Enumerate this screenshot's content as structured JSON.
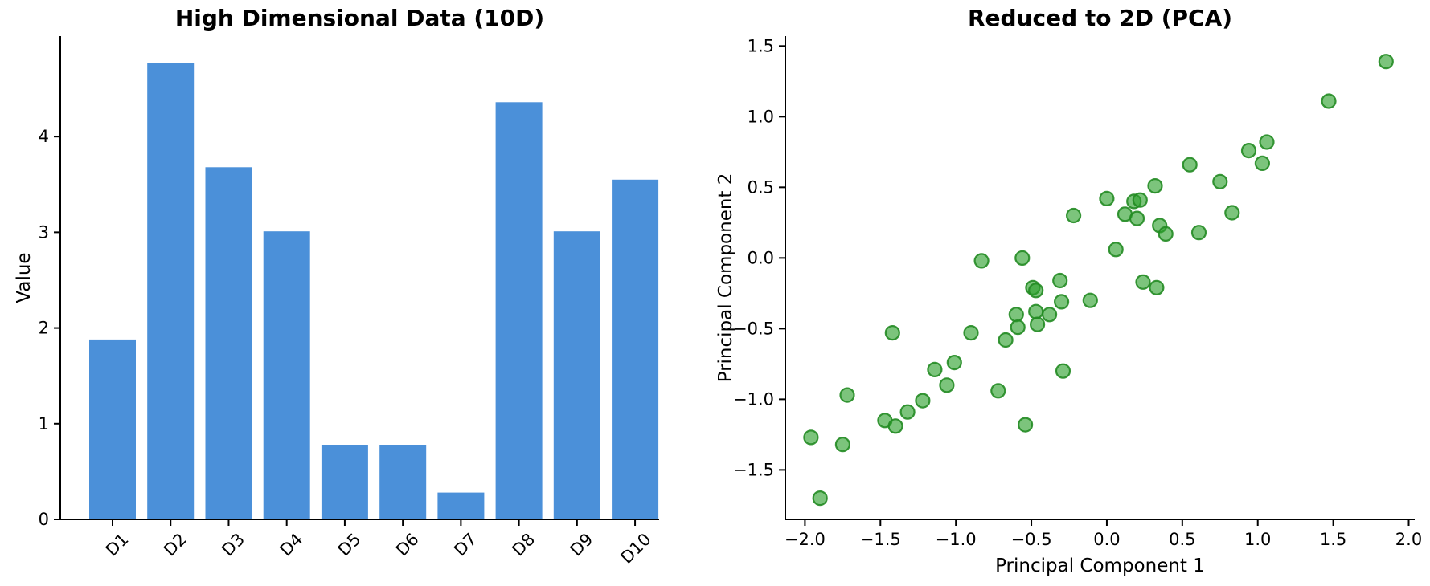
{
  "figure": {
    "background": "#ffffff",
    "spine_color": "#000000"
  },
  "chart_data": [
    {
      "id": "bar-chart",
      "type": "bar",
      "title": "High Dimensional Data (10D)",
      "xlabel": "",
      "ylabel": "Value",
      "categories": [
        "D1",
        "D2",
        "D3",
        "D4",
        "D5",
        "D6",
        "D7",
        "D8",
        "D9",
        "D10"
      ],
      "values": [
        1.88,
        4.77,
        3.68,
        3.01,
        0.78,
        0.78,
        0.28,
        4.36,
        3.01,
        3.55
      ],
      "ylim": [
        0,
        5.05
      ],
      "yticks": {
        "values": [
          0,
          1,
          2,
          3,
          4
        ],
        "labels": [
          "0",
          "1",
          "2",
          "3",
          "4"
        ]
      },
      "xtick_rotation_deg": 45,
      "grid": "off",
      "legend": "none",
      "bar_color": "#4b90d9"
    },
    {
      "id": "scatter-chart",
      "type": "scatter",
      "title": "Reduced to 2D (PCA)",
      "xlabel": "Principal Component 1",
      "ylabel": "Principal Component 2",
      "xlim": [
        -2.13,
        2.04
      ],
      "ylim": [
        -1.85,
        1.57
      ],
      "xticks": {
        "values": [
          -2.0,
          -1.5,
          -1.0,
          -0.5,
          0.0,
          0.5,
          1.0,
          1.5,
          2.0
        ],
        "labels": [
          "−2.0",
          "−1.5",
          "−1.0",
          "−0.5",
          "0.0",
          "0.5",
          "1.0",
          "1.5",
          "2.0"
        ]
      },
      "yticks": {
        "values": [
          -1.5,
          -1.0,
          -0.5,
          0.0,
          0.5,
          1.0,
          1.5
        ],
        "labels": [
          "−1.5",
          "−1.0",
          "−0.5",
          "0.0",
          "0.5",
          "1.0",
          "1.5"
        ]
      },
      "grid": "off",
      "legend": "none",
      "point_color": "#2ca02c",
      "point_alpha": 0.62,
      "point_edge_color": "#228b22",
      "points": [
        [
          1.85,
          1.39
        ],
        [
          1.47,
          1.11
        ],
        [
          1.06,
          0.82
        ],
        [
          0.94,
          0.76
        ],
        [
          1.03,
          0.67
        ],
        [
          0.55,
          0.66
        ],
        [
          0.75,
          0.54
        ],
        [
          0.32,
          0.51
        ],
        [
          0.18,
          0.4
        ],
        [
          0.22,
          0.41
        ],
        [
          0.12,
          0.31
        ],
        [
          0.2,
          0.28
        ],
        [
          0.35,
          0.23
        ],
        [
          0.39,
          0.17
        ],
        [
          0.61,
          0.18
        ],
        [
          0.83,
          0.32
        ],
        [
          0.06,
          0.06
        ],
        [
          0.0,
          0.42
        ],
        [
          -0.22,
          0.3
        ],
        [
          -0.56,
          0.0
        ],
        [
          -0.83,
          -0.02
        ],
        [
          0.24,
          -0.17
        ],
        [
          0.33,
          -0.21
        ],
        [
          -0.31,
          -0.16
        ],
        [
          -0.3,
          -0.31
        ],
        [
          -0.11,
          -0.3
        ],
        [
          -0.49,
          -0.21
        ],
        [
          -0.47,
          -0.23
        ],
        [
          -0.47,
          -0.38
        ],
        [
          -0.46,
          -0.47
        ],
        [
          -0.38,
          -0.4
        ],
        [
          -0.6,
          -0.4
        ],
        [
          -0.59,
          -0.49
        ],
        [
          -0.67,
          -0.58
        ],
        [
          -0.9,
          -0.53
        ],
        [
          -1.42,
          -0.53
        ],
        [
          -1.01,
          -0.74
        ],
        [
          -1.14,
          -0.79
        ],
        [
          -1.06,
          -0.9
        ],
        [
          -0.72,
          -0.94
        ],
        [
          -0.29,
          -0.8
        ],
        [
          -1.22,
          -1.01
        ],
        [
          -1.32,
          -1.09
        ],
        [
          -1.47,
          -1.15
        ],
        [
          -1.4,
          -1.19
        ],
        [
          -0.54,
          -1.18
        ],
        [
          -1.72,
          -0.97
        ],
        [
          -1.96,
          -1.27
        ],
        [
          -1.75,
          -1.32
        ],
        [
          -1.9,
          -1.7
        ]
      ]
    }
  ]
}
